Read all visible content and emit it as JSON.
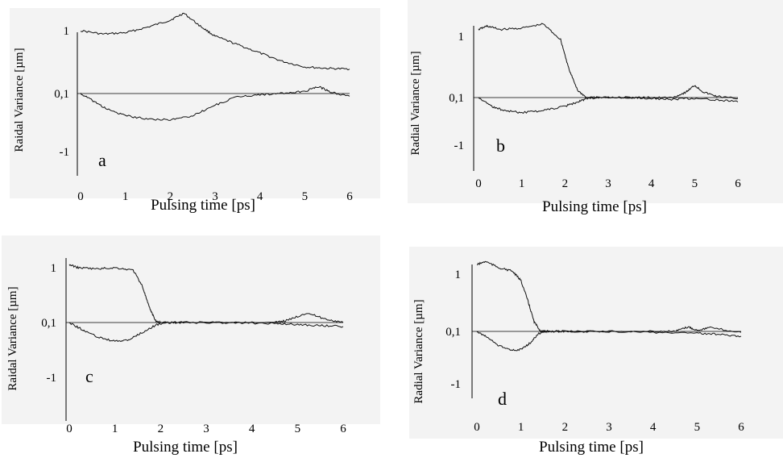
{
  "figure": {
    "panels": [
      {
        "label": "a",
        "ylabel": "Raidal Variance [µm]",
        "xlabel": "Pulsing time [ps]"
      },
      {
        "label": "b",
        "ylabel": "Radial Variance [µm]",
        "xlabel": "Pulsing time [ps]"
      },
      {
        "label": "c",
        "ylabel": "Raidal Variance [µm]",
        "xlabel": "Pulsing time [ps]"
      },
      {
        "label": "d",
        "ylabel": "Radial Variance [µm]",
        "xlabel": "Pulsing time [ps]"
      }
    ]
  },
  "chart_data": [
    {
      "type": "line",
      "panel_label": "a",
      "xlabel": "Pulsing time [ps]",
      "ylabel": "Raidal Variance [µm]",
      "xlim": [
        0,
        6
      ],
      "x_ticks": [
        "0",
        "1",
        "2",
        "3",
        "4",
        "5",
        "6"
      ],
      "y_ticks": [
        "1",
        "0,1",
        "-1"
      ],
      "grid": false,
      "reference_line": 0.1,
      "series": [
        {
          "x": [
            0,
            0.5,
            1,
            1.5,
            2,
            2.3,
            2.7,
            3,
            3.5,
            4,
            4.5,
            5,
            5.5,
            6
          ],
          "y": [
            1.0,
            0.95,
            0.97,
            1.05,
            1.15,
            1.25,
            1.05,
            0.92,
            0.8,
            0.68,
            0.56,
            0.48,
            0.46,
            0.45
          ]
        },
        {
          "x": [
            0,
            0.3,
            0.6,
            1,
            1.5,
            2,
            2.5,
            3,
            3.5,
            4,
            4.5,
            5,
            5.3,
            5.6,
            6
          ],
          "y": [
            0.1,
            -0.05,
            -0.2,
            -0.32,
            -0.38,
            -0.4,
            -0.32,
            -0.12,
            0.04,
            0.08,
            0.1,
            0.13,
            0.2,
            0.12,
            0.05
          ]
        }
      ]
    },
    {
      "type": "line",
      "panel_label": "b",
      "xlabel": "Pulsing time [ps]",
      "ylabel": "Radial Variance [µm]",
      "xlim": [
        0,
        6
      ],
      "x_ticks": [
        "0",
        "1",
        "2",
        "3",
        "4",
        "5",
        "6"
      ],
      "y_ticks": [
        "1",
        "0,1",
        "-1"
      ],
      "grid": false,
      "reference_line": 0.1,
      "series": [
        {
          "x": [
            0,
            0.2,
            0.5,
            1,
            1.5,
            1.9,
            2.1,
            2.3,
            2.5,
            2.8,
            3.5,
            4,
            4.5,
            4.8,
            5,
            5.2,
            5.5,
            6
          ],
          "y": [
            1.1,
            1.15,
            1.1,
            1.12,
            1.18,
            0.95,
            0.5,
            0.2,
            0.1,
            0.1,
            0.1,
            0.1,
            0.1,
            0.18,
            0.28,
            0.18,
            0.12,
            0.08
          ]
        },
        {
          "x": [
            0,
            0.3,
            0.6,
            1,
            1.5,
            2,
            2.3,
            2.5,
            2.8,
            3.5,
            4,
            4.5,
            5,
            5.5,
            6
          ],
          "y": [
            0.1,
            -0.1,
            -0.2,
            -0.25,
            -0.2,
            -0.1,
            0.0,
            0.08,
            0.1,
            0.1,
            0.08,
            0.06,
            0.08,
            0.05,
            0.0
          ]
        }
      ]
    },
    {
      "type": "line",
      "panel_label": "c",
      "xlabel": "Pulsing time [ps]",
      "ylabel": "Raidal Variance [µm]",
      "xlim": [
        0,
        6
      ],
      "x_ticks": [
        "0",
        "1",
        "2",
        "3",
        "4",
        "5",
        "6"
      ],
      "y_ticks": [
        "1",
        "0,1",
        "-1"
      ],
      "grid": false,
      "reference_line": 0.1,
      "series": [
        {
          "x": [
            0,
            0.2,
            0.6,
            1,
            1.4,
            1.6,
            1.75,
            1.9,
            2.0,
            2.5,
            3.5,
            4.5,
            4.8,
            5.2,
            5.6,
            6
          ],
          "y": [
            1.05,
            1.0,
            0.98,
            1.0,
            0.96,
            0.7,
            0.35,
            0.12,
            0.1,
            0.1,
            0.1,
            0.1,
            0.14,
            0.26,
            0.16,
            0.1
          ]
        },
        {
          "x": [
            0,
            0.3,
            0.6,
            1,
            1.3,
            1.6,
            1.9,
            2.1,
            2.5,
            3.5,
            4.5,
            5,
            5.5,
            6
          ],
          "y": [
            0.1,
            -0.05,
            -0.18,
            -0.28,
            -0.25,
            -0.1,
            0.05,
            0.1,
            0.1,
            0.1,
            0.08,
            0.06,
            0.04,
            0.02
          ]
        }
      ]
    },
    {
      "type": "line",
      "panel_label": "d",
      "xlabel": "Pulsing time [ps]",
      "ylabel": "Radial Variance [µm]",
      "xlim": [
        0,
        6
      ],
      "x_ticks": [
        "0",
        "1",
        "2",
        "3",
        "4",
        "5",
        "6"
      ],
      "y_ticks": [
        "1",
        "0,1",
        "-1"
      ],
      "grid": false,
      "reference_line": 0.1,
      "series": [
        {
          "x": [
            0,
            0.2,
            0.5,
            0.8,
            1,
            1.15,
            1.3,
            1.45,
            1.6,
            2,
            3,
            4,
            4.5,
            4.8,
            5,
            5.3,
            6
          ],
          "y": [
            1.15,
            1.2,
            1.1,
            1.05,
            0.9,
            0.6,
            0.25,
            0.1,
            0.1,
            0.1,
            0.1,
            0.1,
            0.1,
            0.17,
            0.12,
            0.16,
            0.08
          ]
        },
        {
          "x": [
            0,
            0.2,
            0.5,
            0.8,
            1,
            1.2,
            1.4,
            1.6,
            2,
            3,
            4,
            5,
            5.5,
            6
          ],
          "y": [
            0.1,
            0.0,
            -0.2,
            -0.3,
            -0.28,
            -0.15,
            0.05,
            0.1,
            0.1,
            0.1,
            0.08,
            0.06,
            0.04,
            0.0
          ]
        }
      ]
    }
  ]
}
